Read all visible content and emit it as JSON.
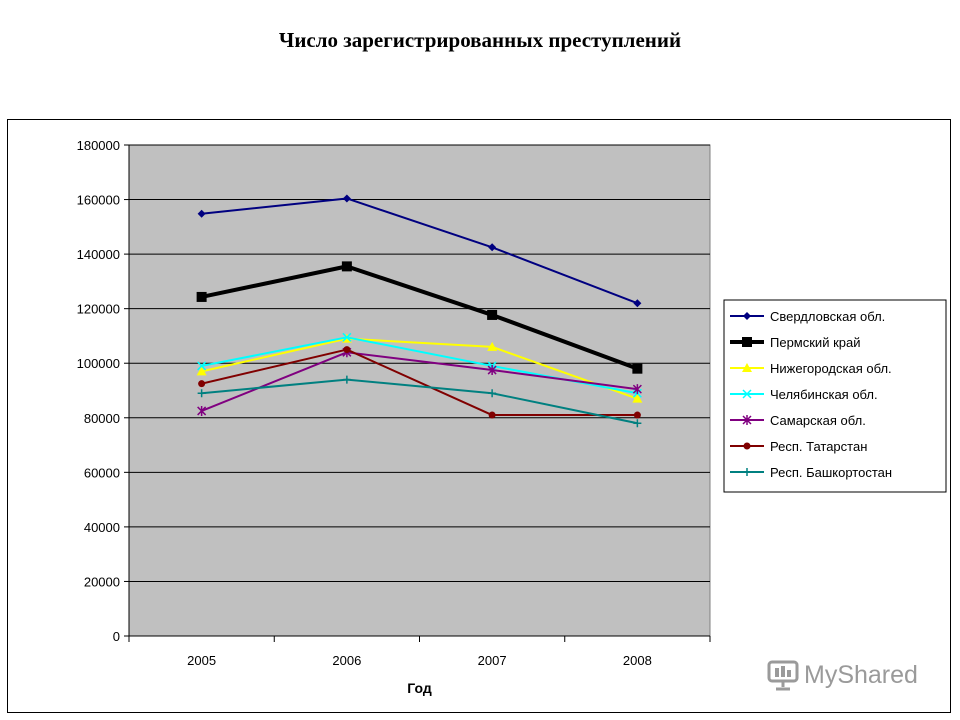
{
  "title": "Число зарегистрированных преступлений",
  "watermark": "MyShared",
  "chart_data": {
    "type": "line",
    "title": "Число зарегистрированных преступлений",
    "xlabel": "Год",
    "ylabel": "",
    "categories": [
      "2005",
      "2006",
      "2007",
      "2008"
    ],
    "ylim": [
      0,
      180000
    ],
    "yticks": [
      0,
      20000,
      40000,
      60000,
      80000,
      100000,
      120000,
      140000,
      160000,
      180000
    ],
    "grid": true,
    "legend": "right",
    "plot_background": "#c0c0c0",
    "series": [
      {
        "name": "Свердловская обл.",
        "color": "#000080",
        "marker": "diamond",
        "width": 2,
        "values": [
          154800,
          160400,
          142500,
          122000
        ]
      },
      {
        "name": "Пермский край",
        "color": "#000000",
        "marker": "square",
        "width": 4,
        "values": [
          124300,
          135500,
          117700,
          98000
        ]
      },
      {
        "name": "Нижегородская обл.",
        "color": "#ffff00",
        "marker": "triangle",
        "width": 2,
        "values": [
          97000,
          109000,
          106000,
          87000
        ]
      },
      {
        "name": "Челябинская обл.",
        "color": "#00ffff",
        "marker": "x",
        "width": 2,
        "values": [
          99000,
          109500,
          99000,
          89000
        ]
      },
      {
        "name": "Самарская обл.",
        "color": "#800080",
        "marker": "star",
        "width": 2,
        "values": [
          82500,
          104000,
          97500,
          90500
        ]
      },
      {
        "name": "Респ. Татарстан",
        "color": "#800000",
        "marker": "circle",
        "width": 2,
        "values": [
          92500,
          105000,
          81000,
          81000
        ]
      },
      {
        "name": "Респ. Башкортостан",
        "color": "#008080",
        "marker": "plus",
        "width": 2,
        "values": [
          89000,
          94000,
          89000,
          78000
        ]
      }
    ]
  }
}
